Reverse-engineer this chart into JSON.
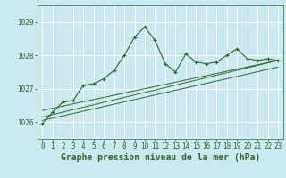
{
  "title": "Graphe pression niveau de la mer (hPa)",
  "bg_color": "#cce8f0",
  "grid_color": "#ffffff",
  "line_color": "#2d6a2d",
  "xlim": [
    -0.5,
    23.5
  ],
  "ylim": [
    1025.5,
    1029.5
  ],
  "yticks": [
    1026,
    1027,
    1028,
    1029
  ],
  "xticks": [
    0,
    1,
    2,
    3,
    4,
    5,
    6,
    7,
    8,
    9,
    10,
    11,
    12,
    13,
    14,
    15,
    16,
    17,
    18,
    19,
    20,
    21,
    22,
    23
  ],
  "series1_x": [
    0,
    1,
    2,
    3,
    4,
    5,
    6,
    7,
    8,
    9,
    10,
    11,
    12,
    13,
    14,
    15,
    16,
    17,
    18,
    19,
    20,
    21,
    22,
    23
  ],
  "series1_y": [
    1025.95,
    1026.3,
    1026.6,
    1026.65,
    1027.1,
    1027.15,
    1027.3,
    1027.55,
    1028.0,
    1028.55,
    1028.85,
    1028.45,
    1027.75,
    1027.5,
    1028.05,
    1027.8,
    1027.75,
    1027.8,
    1028.0,
    1028.2,
    1027.9,
    1027.85,
    1027.9,
    1027.85
  ],
  "series2_x": [
    0,
    23
  ],
  "series2_y": [
    1026.15,
    1027.85
  ],
  "series3_x": [
    0,
    23
  ],
  "series3_y": [
    1026.35,
    1027.85
  ],
  "series4_x": [
    0,
    23
  ],
  "series4_y": [
    1026.05,
    1027.65
  ],
  "tick_fontsize": 5.5,
  "xlabel_fontsize": 7.0
}
